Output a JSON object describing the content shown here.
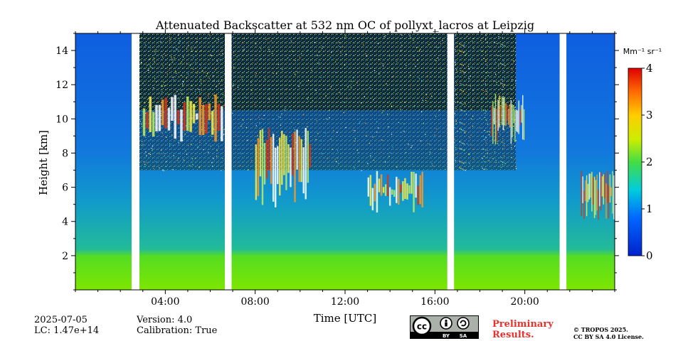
{
  "chart_data": {
    "type": "heatmap",
    "title": "Attenuated Backscatter at 532 nm OC of pollyxt_lacros at Leipzig",
    "xlabel": "Time [UTC]",
    "ylabel": "Height [km]",
    "x_range_hours": [
      0,
      24
    ],
    "y_range_km": [
      0,
      15
    ],
    "x_ticks": [
      "04:00",
      "08:00",
      "12:00",
      "16:00",
      "20:00"
    ],
    "x_tick_hours": [
      4,
      8,
      12,
      16,
      20
    ],
    "y_ticks": [
      "2",
      "4",
      "6",
      "8",
      "10",
      "12",
      "14"
    ],
    "y_tick_values": [
      2,
      4,
      6,
      8,
      10,
      12,
      14
    ],
    "colorbar": {
      "unit": "Mm⁻¹ sr⁻¹",
      "range": [
        0,
        4
      ],
      "ticks": [
        "0",
        "1",
        "2",
        "3",
        "4"
      ],
      "tick_values": [
        0,
        1,
        2,
        3,
        4
      ],
      "colormap": "jet"
    },
    "data_gaps_hours": [
      [
        2.5,
        2.85
      ],
      [
        6.65,
        6.95
      ],
      [
        16.55,
        16.85
      ],
      [
        21.55,
        21.85
      ]
    ],
    "cloud_layers": [
      {
        "start_hour": 3.0,
        "end_hour": 6.6,
        "base_km": 8.6,
        "top_km": 11.5
      },
      {
        "start_hour": 8.0,
        "end_hour": 10.5,
        "base_km": 4.8,
        "top_km": 9.5
      },
      {
        "start_hour": 13.0,
        "end_hour": 15.5,
        "base_km": 4.5,
        "top_km": 7.0
      },
      {
        "start_hour": 18.5,
        "end_hour": 20.0,
        "base_km": 8.5,
        "top_km": 11.5
      },
      {
        "start_hour": 22.5,
        "end_hour": 24.0,
        "base_km": 4.0,
        "top_km": 7.0
      }
    ],
    "boundary_layer_top_km": 2.2
  },
  "footer": {
    "date": "2025-07-05",
    "lc": "LC: 1.47e+14",
    "version": "Version: 4.0",
    "calibration": "Calibration: True",
    "preliminary_line1": "Preliminary",
    "preliminary_line2": "Results.",
    "copyright_line1": "© TROPOS 2025.",
    "copyright_line2": "CC BY SA 4.0 License.",
    "license_badge_text": [
      "cc",
      "BY",
      "SA"
    ]
  }
}
